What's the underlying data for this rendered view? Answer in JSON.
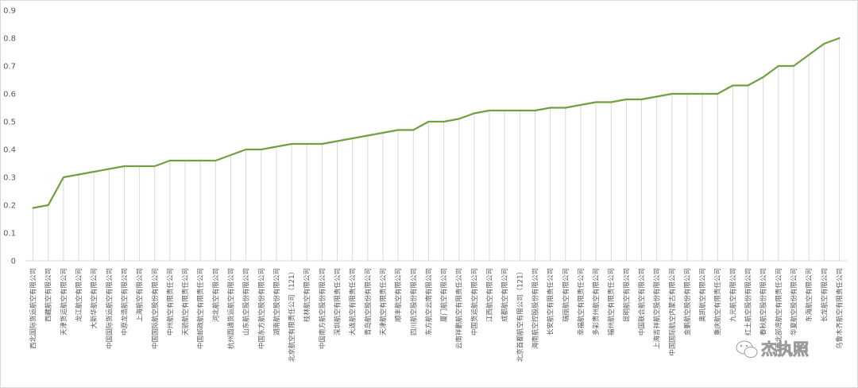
{
  "chart_data": {
    "type": "line",
    "title": "",
    "xlabel": "",
    "ylabel": "",
    "ylim": [
      0,
      0.9
    ],
    "yticks": [
      "0",
      "0.1",
      "0.2",
      "0.3",
      "0.4",
      "0.5",
      "0.6",
      "0.7",
      "0.8",
      "0.9"
    ],
    "grid": "vertical drop lines",
    "legend": "none",
    "line_color": "#70a03f",
    "categories": [
      "西北国际货运航空有限公司",
      "西藏航空有限公司",
      "天津货运航空有限公司",
      "龙江航空有限公司",
      "大新华航空有限公司",
      "中国国际货运航空有限公司",
      "中原龙浩航空有限公司",
      "上海航空有限公司",
      "中国国际航空股份有限公司",
      "中州航空有限责任公司",
      "天骄航空有限责任公司",
      "中国邮政航空有限责任公司",
      "河北航空有限公司",
      "杭州圆通货运航空有限公司",
      "山东航空股份有限公司",
      "中国东方航空股份有限公司",
      "湖南航空股份有限公司",
      "北京航空有限责任公司（121）",
      "桂林航空有限公司",
      "中国南方航空股份有限公司",
      "深圳航空有限责任公司",
      "大连航空有限责任公司",
      "青岛航空股份有限公司",
      "天津航空有限责任公司",
      "顺丰航空有限公司",
      "四川航空股份有限公司",
      "东方航空云南有限公司",
      "厦门航空有限公司",
      "云南祥鹏航空有限责任公司",
      "中国货运航空有限公司",
      "江西航空有限公司",
      "成都航空有限公司",
      "北京首都航空有限公司（121）",
      "海南航空控股股份有限公司",
      "长安航空有限责任公司",
      "瑞丽航空有限公司",
      "幸福航空有限责任公司",
      "多彩贵州航空有限公司",
      "福州航空有限责任公司",
      "昆明航空有限公司",
      "中国联合航空有限公司",
      "上海吉祥航空股份有限公司",
      "中国国际航空内蒙古有限公司",
      "金鹏航空股份有限公司",
      "奥凯航空有限公司",
      "重庆航空有限责任公司",
      "九元航空有限公司",
      "红土航空股份有限公司",
      "春秋航空股份有限公司",
      "广西北部湾航空有限责任公司",
      "华夏航空股份有限公司",
      "东海航空有限公司",
      "长龙航空有限公司",
      "乌鲁木齐航空有限责任公司"
    ],
    "values": [
      0.19,
      0.2,
      0.3,
      0.31,
      0.32,
      0.33,
      0.34,
      0.34,
      0.34,
      0.36,
      0.36,
      0.36,
      0.36,
      0.38,
      0.4,
      0.4,
      0.41,
      0.42,
      0.42,
      0.42,
      0.43,
      0.44,
      0.45,
      0.46,
      0.47,
      0.47,
      0.5,
      0.5,
      0.51,
      0.53,
      0.54,
      0.54,
      0.54,
      0.54,
      0.55,
      0.55,
      0.56,
      0.57,
      0.57,
      0.58,
      0.58,
      0.59,
      0.6,
      0.6,
      0.6,
      0.6,
      0.63,
      0.63,
      0.66,
      0.7,
      0.7,
      0.74,
      0.78,
      0.8
    ]
  },
  "watermark": {
    "text": "杰执照",
    "icon": "wechat-icon"
  }
}
